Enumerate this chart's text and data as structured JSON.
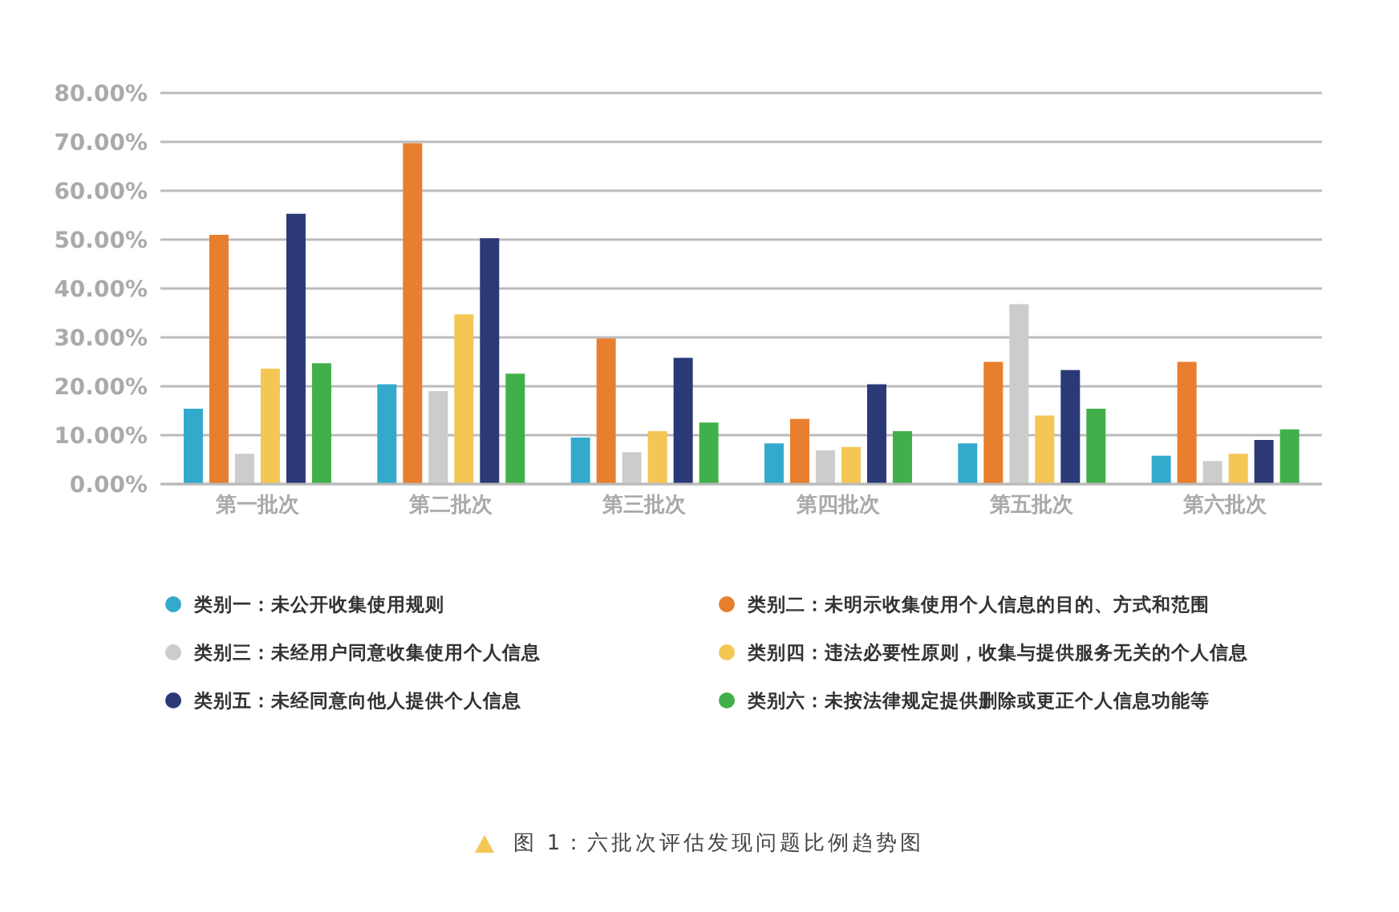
{
  "chart_data": {
    "type": "bar",
    "title": "图 1：六批次评估发现问题比例趋势图",
    "categories": [
      "第一批次",
      "第二批次",
      "第三批次",
      "第四批次",
      "第五批次",
      "第六批次"
    ],
    "series": [
      {
        "name": "类别一：未公开收集使用规则",
        "color": "#33aacc",
        "values": [
          15.4,
          20.4,
          9.5,
          8.3,
          8.3,
          5.8
        ]
      },
      {
        "name": "类别二：未明示收集使用个人信息的目的、方式和范围",
        "color": "#e87f2e",
        "values": [
          51.0,
          69.7,
          29.8,
          13.3,
          25.0,
          25.0
        ]
      },
      {
        "name": "类别三：未经用户同意收集使用个人信息",
        "color": "#cccccc",
        "values": [
          6.2,
          19.0,
          6.5,
          6.9,
          36.8,
          4.7
        ]
      },
      {
        "name": "类别四：违法必要性原则，收集与提供服务无关的个人信息",
        "color": "#f4c653",
        "values": [
          23.6,
          34.7,
          10.8,
          7.6,
          14.0,
          6.2
        ]
      },
      {
        "name": "类别五：未经同意向他人提供个人信息",
        "color": "#2b3a76",
        "values": [
          55.3,
          50.3,
          25.8,
          20.4,
          23.3,
          9.0
        ]
      },
      {
        "name": "类别六：未按法律规定提供删除或更正个人信息功能等",
        "color": "#41b04a",
        "values": [
          24.7,
          22.6,
          12.6,
          10.8,
          15.4,
          11.2
        ]
      }
    ],
    "ylim": [
      0,
      80
    ],
    "yticks": [
      {
        "value": 0,
        "label": "0.00%"
      },
      {
        "value": 10,
        "label": "10.00%"
      },
      {
        "value": 20,
        "label": "20.00%"
      },
      {
        "value": 30,
        "label": "30.00%"
      },
      {
        "value": 40,
        "label": "40.00%"
      },
      {
        "value": 50,
        "label": "50.00%"
      },
      {
        "value": 60,
        "label": "60.00%"
      },
      {
        "value": 70,
        "label": "70.00%"
      },
      {
        "value": 80,
        "label": "80.00%"
      }
    ],
    "grid": "y",
    "legend": "bottom"
  }
}
